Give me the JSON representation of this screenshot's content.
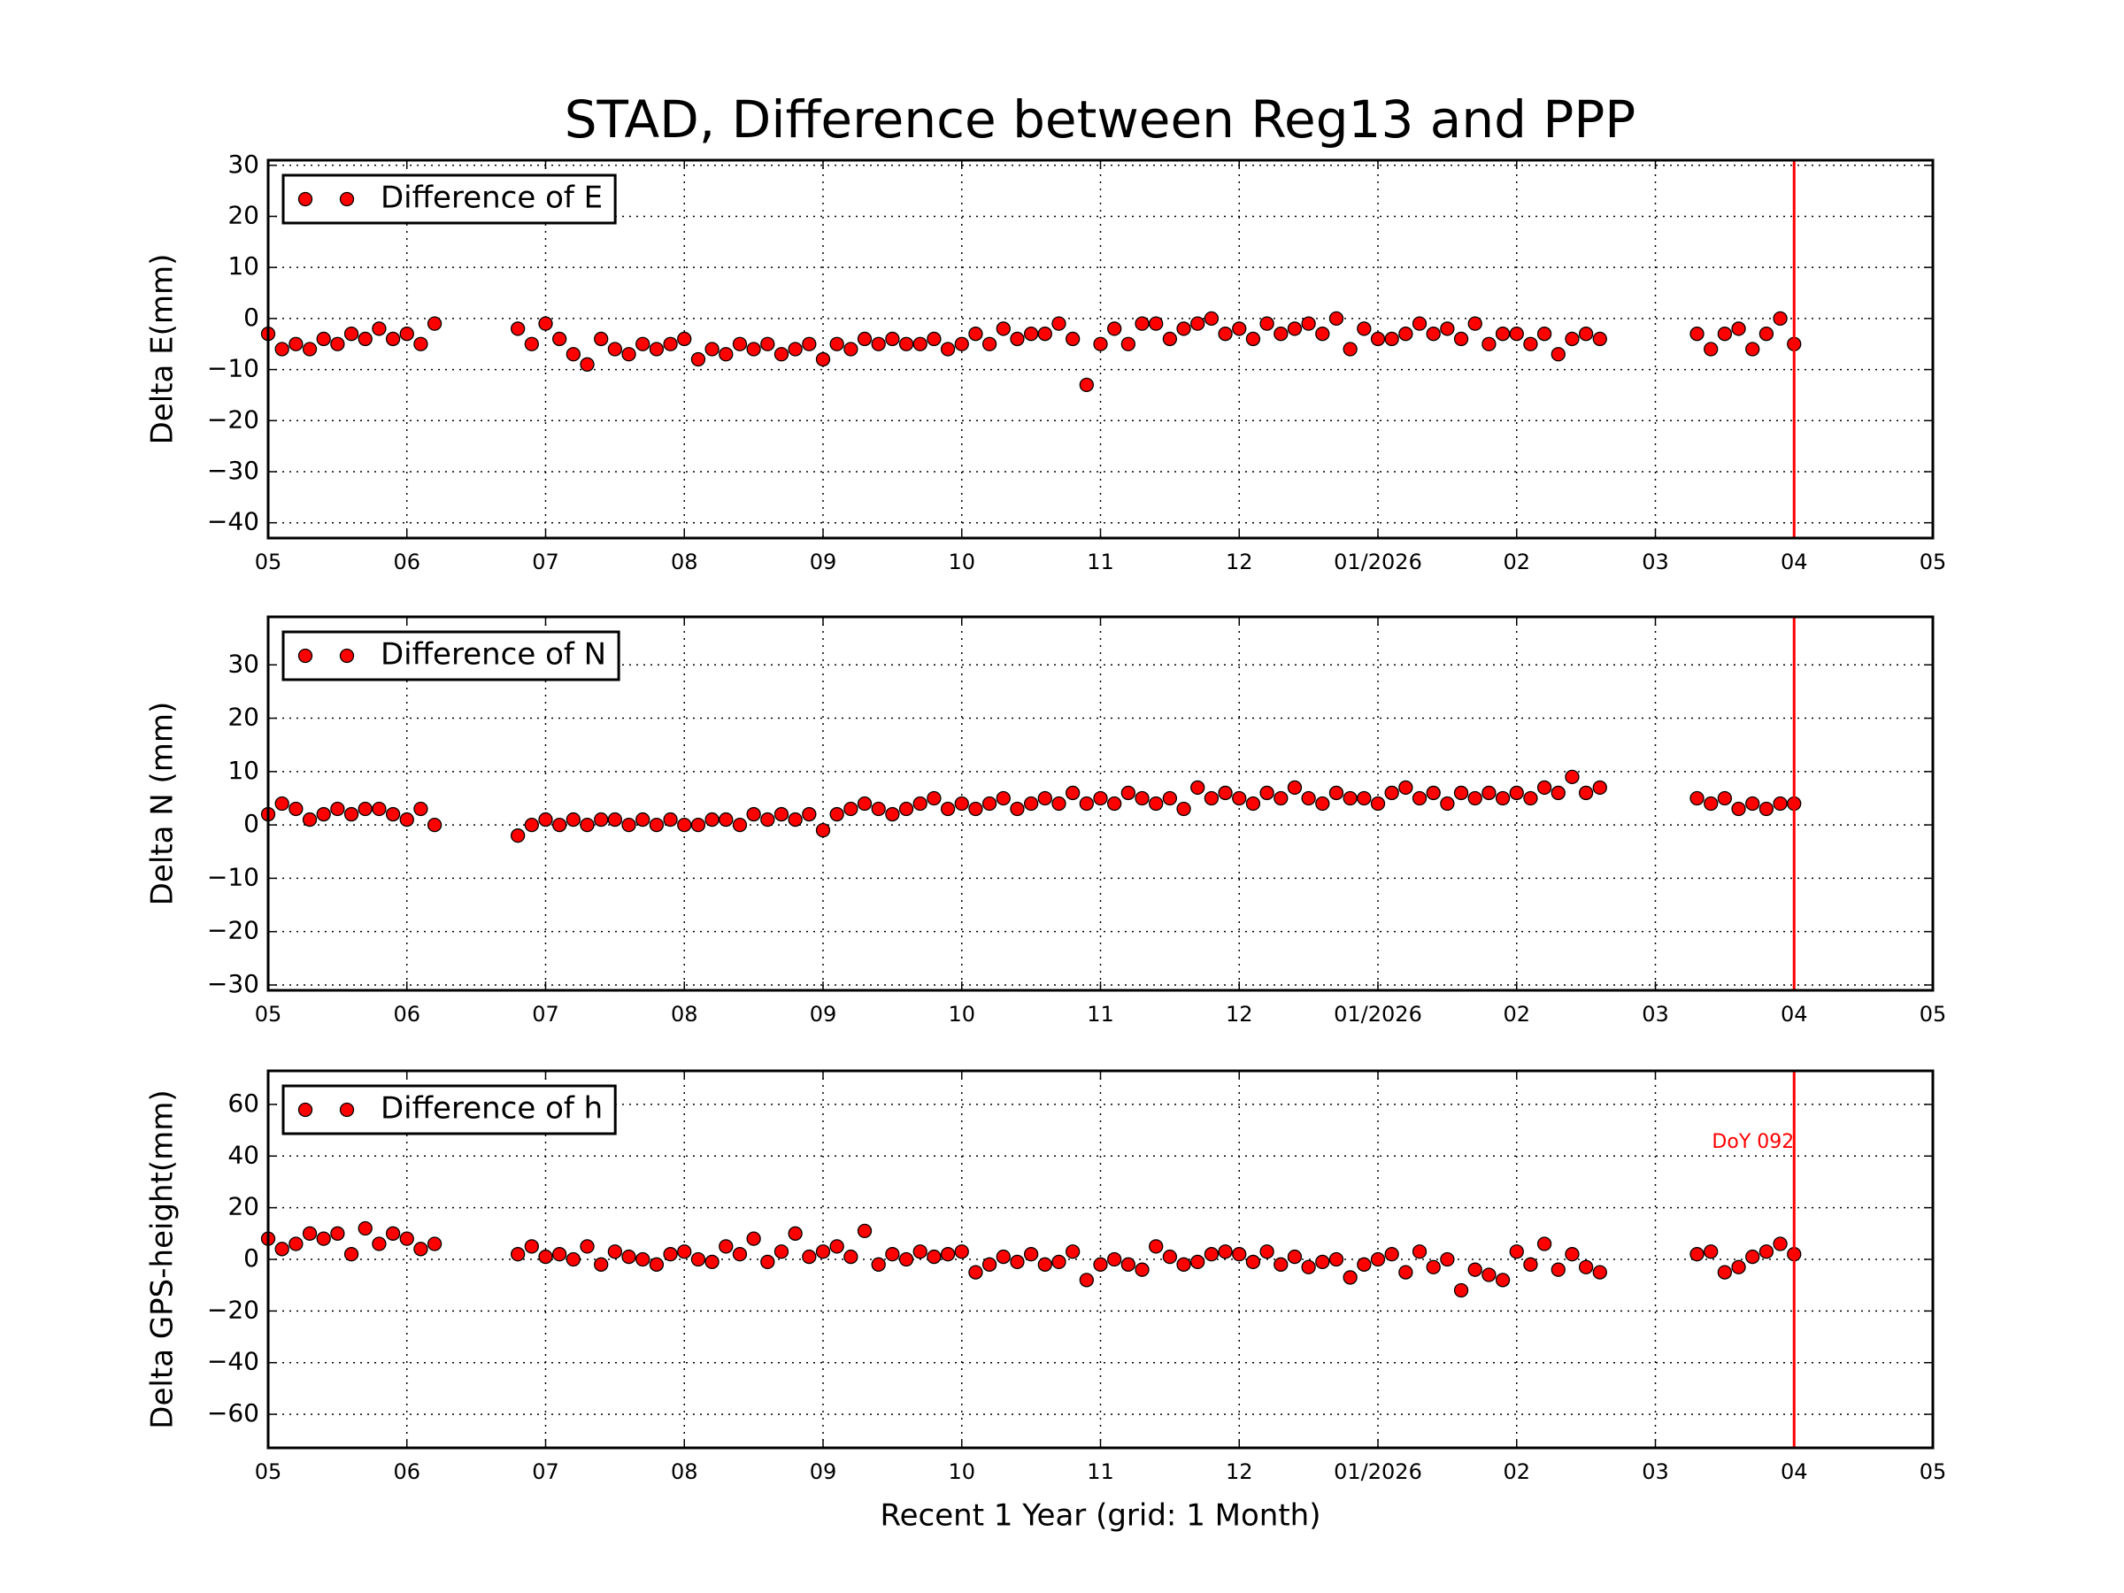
{
  "title": "STAD, Difference between Reg13 and PPP",
  "chart_data": [
    {
      "type": "scatter",
      "ylabel": "Delta E(mm)",
      "legend": "upper left",
      "grid": true,
      "x": [
        0,
        0.1,
        0.2,
        0.3,
        0.4,
        0.5,
        0.6,
        0.7,
        0.8,
        0.9,
        1,
        1.1,
        1.2,
        1.8,
        1.9,
        2,
        2.1,
        2.2,
        2.3,
        2.4,
        2.5,
        2.6,
        2.7,
        2.8,
        2.9,
        3,
        3.1,
        3.2,
        3.3,
        3.4,
        3.5,
        3.6,
        3.7,
        3.8,
        3.9,
        4,
        4.1,
        4.2,
        4.3,
        4.4,
        4.5,
        4.6,
        4.7,
        4.8,
        4.9,
        5,
        5.1,
        5.2,
        5.3,
        5.4,
        5.5,
        5.6,
        5.7,
        5.8,
        5.9,
        6,
        6.1,
        6.2,
        6.3,
        6.4,
        6.5,
        6.6,
        6.7,
        6.8,
        6.9,
        7,
        7.1,
        7.2,
        7.3,
        7.4,
        7.5,
        7.6,
        7.7,
        7.8,
        7.9,
        8,
        8.1,
        8.2,
        8.3,
        8.4,
        8.5,
        8.6,
        8.7,
        8.8,
        8.9,
        9,
        9.1,
        9.2,
        9.3,
        9.4,
        9.5,
        9.6,
        10.3,
        10.4,
        10.5,
        10.6,
        10.7,
        10.8,
        10.9,
        11
      ],
      "series": [
        {
          "name": "Difference of E",
          "color": "#ff0000",
          "values": [
            -3,
            -6,
            -5,
            -6,
            -4,
            -5,
            -3,
            -4,
            -2,
            -4,
            -3,
            -5,
            -1,
            -2,
            -5,
            -1,
            -4,
            -7,
            -9,
            -4,
            -6,
            -7,
            -5,
            -6,
            -5,
            -4,
            -8,
            -6,
            -7,
            -5,
            -6,
            -5,
            -7,
            -6,
            -5,
            -8,
            -5,
            -6,
            -4,
            -5,
            -4,
            -5,
            -5,
            -4,
            -6,
            -5,
            -3,
            -5,
            -2,
            -4,
            -3,
            -3,
            -1,
            -4,
            -13,
            -5,
            -2,
            -5,
            -1,
            -1,
            -4,
            -2,
            -1,
            0,
            -3,
            -2,
            -4,
            -1,
            -3,
            -2,
            -1,
            -3,
            0,
            -6,
            -2,
            -4,
            -4,
            -3,
            -1,
            -3,
            -2,
            -4,
            -1,
            -5,
            -3,
            -3,
            -5,
            -3,
            -7,
            -4,
            -3,
            -4,
            -3,
            -6,
            -3,
            -2,
            -6,
            -3,
            0,
            -5
          ]
        }
      ],
      "vline": 11,
      "vline_color": "#ff0000",
      "xlim": [
        0,
        12
      ],
      "xticks": [
        {
          "value": 0,
          "label": "05"
        },
        {
          "value": 1,
          "label": "06"
        },
        {
          "value": 2,
          "label": "07"
        },
        {
          "value": 3,
          "label": "08"
        },
        {
          "value": 4,
          "label": "09"
        },
        {
          "value": 5,
          "label": "10"
        },
        {
          "value": 6,
          "label": "11"
        },
        {
          "value": 7,
          "label": "12"
        },
        {
          "value": 8,
          "label": "01/2026"
        },
        {
          "value": 9,
          "label": "02"
        },
        {
          "value": 10,
          "label": "03"
        },
        {
          "value": 11,
          "label": "04"
        },
        {
          "value": 12,
          "label": "05"
        }
      ],
      "ylim": [
        -43,
        31
      ],
      "yticks": [
        {
          "value": -40,
          "label": "−40"
        },
        {
          "value": -30,
          "label": "−30"
        },
        {
          "value": -20,
          "label": "−20"
        },
        {
          "value": -10,
          "label": "−10"
        },
        0,
        10,
        20,
        30
      ]
    },
    {
      "type": "scatter",
      "ylabel": "Delta N (mm)",
      "legend": "upper left",
      "grid": true,
      "x": [
        0,
        0.1,
        0.2,
        0.3,
        0.4,
        0.5,
        0.6,
        0.7,
        0.8,
        0.9,
        1,
        1.1,
        1.2,
        1.8,
        1.9,
        2,
        2.1,
        2.2,
        2.3,
        2.4,
        2.5,
        2.6,
        2.7,
        2.8,
        2.9,
        3,
        3.1,
        3.2,
        3.3,
        3.4,
        3.5,
        3.6,
        3.7,
        3.8,
        3.9,
        4,
        4.1,
        4.2,
        4.3,
        4.4,
        4.5,
        4.6,
        4.7,
        4.8,
        4.9,
        5,
        5.1,
        5.2,
        5.3,
        5.4,
        5.5,
        5.6,
        5.7,
        5.8,
        5.9,
        6,
        6.1,
        6.2,
        6.3,
        6.4,
        6.5,
        6.6,
        6.7,
        6.8,
        6.9,
        7,
        7.1,
        7.2,
        7.3,
        7.4,
        7.5,
        7.6,
        7.7,
        7.8,
        7.9,
        8,
        8.1,
        8.2,
        8.3,
        8.4,
        8.5,
        8.6,
        8.7,
        8.8,
        8.9,
        9,
        9.1,
        9.2,
        9.3,
        9.4,
        9.5,
        9.6,
        10.3,
        10.4,
        10.5,
        10.6,
        10.7,
        10.8,
        10.9,
        11
      ],
      "series": [
        {
          "name": "Difference of N",
          "color": "#ff0000",
          "values": [
            2,
            4,
            3,
            1,
            2,
            3,
            2,
            3,
            3,
            2,
            1,
            3,
            0,
            -2,
            0,
            1,
            0,
            1,
            0,
            1,
            1,
            0,
            1,
            0,
            1,
            0,
            0,
            1,
            1,
            0,
            2,
            1,
            2,
            1,
            2,
            -1,
            2,
            3,
            4,
            3,
            2,
            3,
            4,
            5,
            3,
            4,
            3,
            4,
            5,
            3,
            4,
            5,
            4,
            6,
            4,
            5,
            4,
            6,
            5,
            4,
            5,
            3,
            7,
            5,
            6,
            5,
            4,
            6,
            5,
            7,
            5,
            4,
            6,
            5,
            5,
            4,
            6,
            7,
            5,
            6,
            4,
            6,
            5,
            6,
            5,
            6,
            5,
            7,
            6,
            9,
            6,
            7,
            5,
            4,
            5,
            3,
            4,
            3,
            4,
            4
          ]
        }
      ],
      "vline": 11,
      "vline_color": "#ff0000",
      "xlim": [
        0,
        12
      ],
      "xticks": [
        {
          "value": 0,
          "label": "05"
        },
        {
          "value": 1,
          "label": "06"
        },
        {
          "value": 2,
          "label": "07"
        },
        {
          "value": 3,
          "label": "08"
        },
        {
          "value": 4,
          "label": "09"
        },
        {
          "value": 5,
          "label": "10"
        },
        {
          "value": 6,
          "label": "11"
        },
        {
          "value": 7,
          "label": "12"
        },
        {
          "value": 8,
          "label": "01/2026"
        },
        {
          "value": 9,
          "label": "02"
        },
        {
          "value": 10,
          "label": "03"
        },
        {
          "value": 11,
          "label": "04"
        },
        {
          "value": 12,
          "label": "05"
        }
      ],
      "ylim": [
        -31,
        39
      ],
      "yticks": [
        {
          "value": -30,
          "label": "−30"
        },
        {
          "value": -20,
          "label": "−20"
        },
        {
          "value": -10,
          "label": "−10"
        },
        0,
        10,
        20,
        30
      ]
    },
    {
      "type": "scatter",
      "ylabel": "Delta GPS-height(mm)",
      "xlabel": "Recent 1 Year (grid: 1 Month)",
      "legend": "upper left",
      "grid": true,
      "x": [
        0,
        0.1,
        0.2,
        0.3,
        0.4,
        0.5,
        0.6,
        0.7,
        0.8,
        0.9,
        1,
        1.1,
        1.2,
        1.8,
        1.9,
        2,
        2.1,
        2.2,
        2.3,
        2.4,
        2.5,
        2.6,
        2.7,
        2.8,
        2.9,
        3,
        3.1,
        3.2,
        3.3,
        3.4,
        3.5,
        3.6,
        3.7,
        3.8,
        3.9,
        4,
        4.1,
        4.2,
        4.3,
        4.4,
        4.5,
        4.6,
        4.7,
        4.8,
        4.9,
        5,
        5.1,
        5.2,
        5.3,
        5.4,
        5.5,
        5.6,
        5.7,
        5.8,
        5.9,
        6,
        6.1,
        6.2,
        6.3,
        6.4,
        6.5,
        6.6,
        6.7,
        6.8,
        6.9,
        7,
        7.1,
        7.2,
        7.3,
        7.4,
        7.5,
        7.6,
        7.7,
        7.8,
        7.9,
        8,
        8.1,
        8.2,
        8.3,
        8.4,
        8.5,
        8.6,
        8.7,
        8.8,
        8.9,
        9,
        9.1,
        9.2,
        9.3,
        9.4,
        9.5,
        9.6,
        10.3,
        10.4,
        10.5,
        10.6,
        10.7,
        10.8,
        10.9,
        11
      ],
      "series": [
        {
          "name": "Difference of h",
          "color": "#ff0000",
          "values": [
            8,
            4,
            6,
            10,
            8,
            10,
            2,
            12,
            6,
            10,
            8,
            4,
            6,
            2,
            5,
            1,
            2,
            0,
            5,
            -2,
            3,
            1,
            0,
            -2,
            2,
            3,
            0,
            -1,
            5,
            2,
            8,
            -1,
            3,
            10,
            1,
            3,
            5,
            1,
            11,
            -2,
            2,
            0,
            3,
            1,
            2,
            3,
            -5,
            -2,
            1,
            -1,
            2,
            -2,
            -1,
            3,
            -8,
            -2,
            0,
            -2,
            -4,
            5,
            1,
            -2,
            -1,
            2,
            3,
            2,
            -1,
            3,
            -2,
            1,
            -3,
            -1,
            0,
            -7,
            -2,
            0,
            2,
            -5,
            3,
            -3,
            0,
            -12,
            -4,
            -6,
            -8,
            3,
            -2,
            6,
            -4,
            2,
            -3,
            -5,
            2,
            3,
            -5,
            -3,
            1,
            3,
            6,
            2
          ]
        }
      ],
      "vline": 11,
      "vline_color": "#ff0000",
      "annotation": "DoY 092",
      "xlim": [
        0,
        12
      ],
      "xticks": [
        {
          "value": 0,
          "label": "05"
        },
        {
          "value": 1,
          "label": "06"
        },
        {
          "value": 2,
          "label": "07"
        },
        {
          "value": 3,
          "label": "08"
        },
        {
          "value": 4,
          "label": "09"
        },
        {
          "value": 5,
          "label": "10"
        },
        {
          "value": 6,
          "label": "11"
        },
        {
          "value": 7,
          "label": "12"
        },
        {
          "value": 8,
          "label": "01/2026"
        },
        {
          "value": 9,
          "label": "02"
        },
        {
          "value": 10,
          "label": "03"
        },
        {
          "value": 11,
          "label": "04"
        },
        {
          "value": 12,
          "label": "05"
        }
      ],
      "ylim": [
        -73,
        73
      ],
      "yticks": [
        {
          "value": -60,
          "label": "−60"
        },
        {
          "value": -40,
          "label": "−40"
        },
        {
          "value": -20,
          "label": "−20"
        },
        0,
        20,
        40,
        60
      ]
    }
  ]
}
